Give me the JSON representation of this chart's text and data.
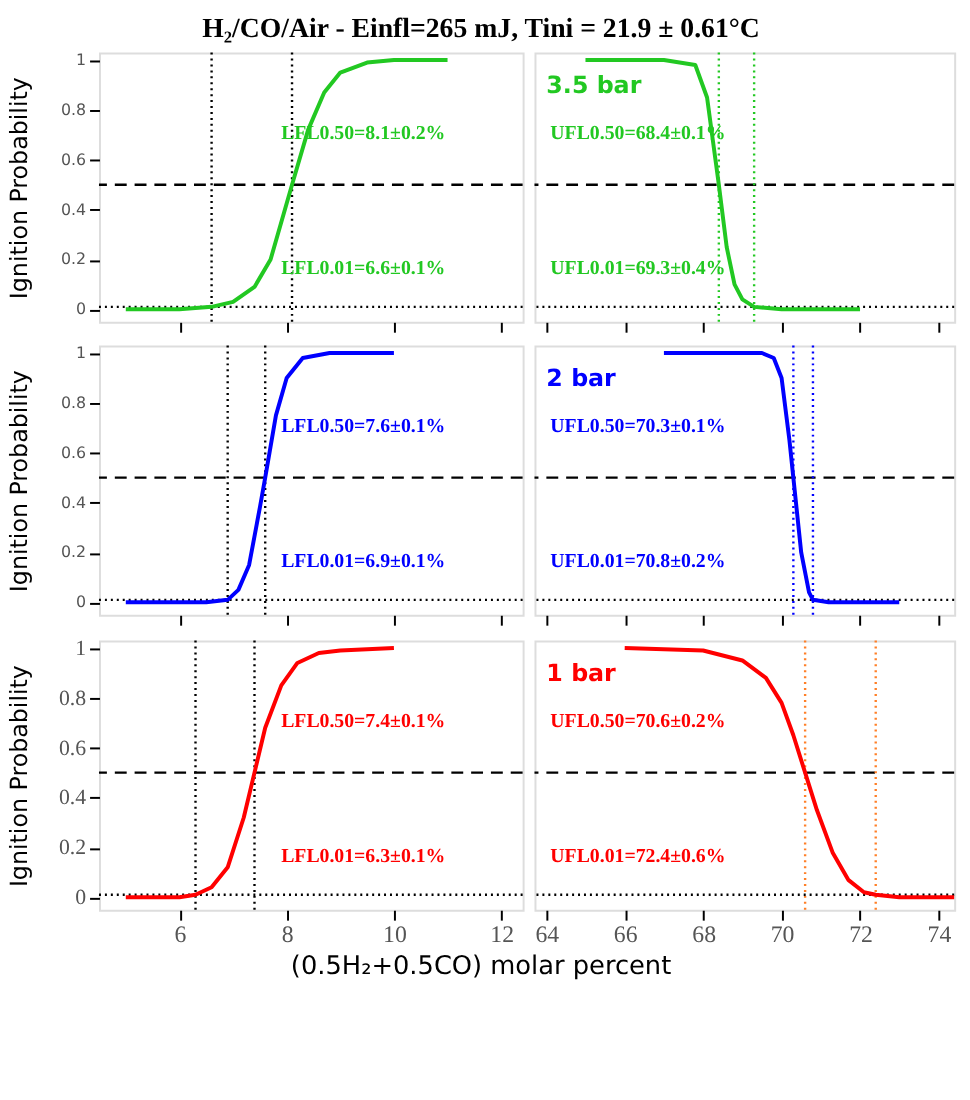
{
  "chart_data": [
    {
      "type": "line",
      "title": "H₂/CO/Air - Einfl=265 mJ, Tini = 21.9 ± 0.61°C",
      "ylabel": "Ignition Probability",
      "xlim": [
        4.5,
        12.4
      ],
      "xticks": [
        6,
        8,
        10,
        12
      ],
      "ylim": [
        -0.05,
        1.03
      ],
      "yticks": [
        0,
        0.2,
        0.4,
        0.6,
        0.8,
        1
      ],
      "tick_labels": "y",
      "grid": false,
      "series": [
        {
          "color": "#22c822",
          "x": [
            5,
            6,
            6.6,
            7,
            7.4,
            7.7,
            8.1,
            8.4,
            8.7,
            9,
            9.5,
            10,
            11
          ],
          "values": [
            0,
            0,
            0.01,
            0.03,
            0.09,
            0.2,
            0.5,
            0.72,
            0.87,
            0.95,
            0.99,
            1,
            1
          ]
        }
      ],
      "ref_lines": [
        {
          "axis": "y",
          "value": 0.5,
          "color": "#000000",
          "line_style": "dashed"
        },
        {
          "axis": "y",
          "value": 0.01,
          "color": "#000000",
          "line_style": "dotted"
        },
        {
          "axis": "x",
          "value": 8.1,
          "color": "#000000",
          "line_style": "dotted"
        },
        {
          "axis": "x",
          "value": 6.6,
          "color": "#000000",
          "line_style": "dotted"
        }
      ],
      "annotations": [
        "LFL0.50=8.1±0.2%",
        "LFL0.01=6.6±0.1%"
      ]
    },
    {
      "type": "line",
      "xlim": [
        63.7,
        74.4
      ],
      "xticks": [
        64,
        66,
        68,
        70,
        72,
        74
      ],
      "ylim": [
        -0.05,
        1.03
      ],
      "tick_labels": false,
      "grid": false,
      "series": [
        {
          "color": "#22c822",
          "x": [
            65,
            67,
            67.8,
            68.1,
            68.4,
            68.6,
            68.8,
            69.0,
            69.3,
            70,
            72
          ],
          "values": [
            1,
            1,
            0.98,
            0.85,
            0.5,
            0.25,
            0.1,
            0.04,
            0.01,
            0,
            0
          ]
        }
      ],
      "ref_lines": [
        {
          "axis": "y",
          "value": 0.5,
          "color": "#000000",
          "line_style": "dashed"
        },
        {
          "axis": "y",
          "value": 0.01,
          "color": "#000000",
          "line_style": "dotted"
        },
        {
          "axis": "x",
          "value": 68.4,
          "color": "#22c822",
          "line_style": "dotted"
        },
        {
          "axis": "x",
          "value": 69.3,
          "color": "#22c822",
          "line_style": "dotted"
        }
      ],
      "annotations": [
        "3.5 bar",
        "UFL0.50=68.4±0.1%",
        "UFL0.01=69.3±0.4%"
      ]
    },
    {
      "type": "line",
      "ylabel": "Ignition Probability",
      "xlim": [
        4.5,
        12.4
      ],
      "xticks": [
        6,
        8,
        10,
        12
      ],
      "ylim": [
        -0.05,
        1.03
      ],
      "yticks": [
        0,
        0.2,
        0.4,
        0.6,
        0.8,
        1
      ],
      "tick_labels": "y",
      "grid": false,
      "series": [
        {
          "color": "#0000ff",
          "x": [
            5,
            6.5,
            6.9,
            7.1,
            7.3,
            7.5,
            7.6,
            7.8,
            8,
            8.3,
            8.8,
            10
          ],
          "values": [
            0,
            0,
            0.01,
            0.05,
            0.15,
            0.38,
            0.5,
            0.75,
            0.9,
            0.98,
            1,
            1
          ]
        }
      ],
      "ref_lines": [
        {
          "axis": "y",
          "value": 0.5,
          "color": "#000000",
          "line_style": "dashed"
        },
        {
          "axis": "y",
          "value": 0.01,
          "color": "#000000",
          "line_style": "dotted"
        },
        {
          "axis": "x",
          "value": 7.6,
          "color": "#000000",
          "line_style": "dotted"
        },
        {
          "axis": "x",
          "value": 6.9,
          "color": "#000000",
          "line_style": "dotted"
        }
      ],
      "annotations": [
        "LFL0.50=7.6±0.1%",
        "LFL0.01=6.9±0.1%"
      ]
    },
    {
      "type": "line",
      "xlim": [
        63.7,
        74.4
      ],
      "xticks": [
        64,
        66,
        68,
        70,
        72,
        74
      ],
      "ylim": [
        -0.05,
        1.03
      ],
      "tick_labels": false,
      "grid": false,
      "series": [
        {
          "color": "#0000ff",
          "x": [
            67,
            69.5,
            69.8,
            70,
            70.2,
            70.3,
            70.5,
            70.7,
            70.8,
            71.2,
            73
          ],
          "values": [
            1,
            1,
            0.98,
            0.9,
            0.65,
            0.5,
            0.2,
            0.04,
            0.01,
            0,
            0
          ]
        }
      ],
      "ref_lines": [
        {
          "axis": "y",
          "value": 0.5,
          "color": "#000000",
          "line_style": "dashed"
        },
        {
          "axis": "y",
          "value": 0.01,
          "color": "#000000",
          "line_style": "dotted"
        },
        {
          "axis": "x",
          "value": 70.3,
          "color": "#0000ff",
          "line_style": "dotted"
        },
        {
          "axis": "x",
          "value": 70.8,
          "color": "#0000ff",
          "line_style": "dotted"
        }
      ],
      "annotations": [
        "2 bar",
        "UFL0.50=70.3±0.1%",
        "UFL0.01=70.8±0.2%"
      ]
    },
    {
      "type": "line",
      "ylabel": "Ignition Probability",
      "xlabel": "(0.5H₂+0.5CO) molar percent",
      "xlim": [
        4.5,
        12.4
      ],
      "xticks": [
        6,
        8,
        10,
        12
      ],
      "ylim": [
        -0.05,
        1.03
      ],
      "yticks": [
        0,
        0.2,
        0.4,
        0.6,
        0.8,
        1
      ],
      "grid": false,
      "series": [
        {
          "color": "#ff0000",
          "x": [
            5,
            6,
            6.3,
            6.6,
            6.9,
            7.2,
            7.4,
            7.6,
            7.9,
            8.2,
            8.6,
            9,
            10
          ],
          "values": [
            0,
            0,
            0.01,
            0.04,
            0.12,
            0.32,
            0.5,
            0.68,
            0.85,
            0.94,
            0.98,
            0.99,
            1
          ]
        }
      ],
      "ref_lines": [
        {
          "axis": "y",
          "value": 0.5,
          "color": "#000000",
          "line_style": "dashed"
        },
        {
          "axis": "y",
          "value": 0.01,
          "color": "#000000",
          "line_style": "dotted"
        },
        {
          "axis": "x",
          "value": 7.4,
          "color": "#000000",
          "line_style": "dotted"
        },
        {
          "axis": "x",
          "value": 6.3,
          "color": "#000000",
          "line_style": "dotted"
        }
      ],
      "annotations": [
        "LFL0.50=7.4±0.1%",
        "LFL0.01=6.3±0.1%"
      ]
    },
    {
      "type": "line",
      "xlim": [
        63.7,
        74.4
      ],
      "xticks": [
        64,
        66,
        68,
        70,
        72,
        74
      ],
      "ylim": [
        -0.05,
        1.03
      ],
      "tick_labels": "x",
      "grid": false,
      "series": [
        {
          "color": "#ff0000",
          "x": [
            66,
            68,
            69,
            69.6,
            70,
            70.3,
            70.6,
            70.9,
            71.3,
            71.7,
            72.1,
            72.4,
            73,
            74.4
          ],
          "values": [
            1,
            0.99,
            0.95,
            0.88,
            0.78,
            0.65,
            0.5,
            0.35,
            0.18,
            0.07,
            0.02,
            0.01,
            0,
            0
          ]
        }
      ],
      "ref_lines": [
        {
          "axis": "y",
          "value": 0.5,
          "color": "#000000",
          "line_style": "dashed"
        },
        {
          "axis": "y",
          "value": 0.01,
          "color": "#000000",
          "line_style": "dotted"
        },
        {
          "axis": "x",
          "value": 70.6,
          "color": "#ff7f27",
          "line_style": "dotted"
        },
        {
          "axis": "x",
          "value": 72.4,
          "color": "#ff7f27",
          "line_style": "dotted"
        }
      ],
      "annotations": [
        "1 bar",
        "UFL0.50=70.6±0.2%",
        "UFL0.01=72.4±0.6%"
      ]
    }
  ]
}
